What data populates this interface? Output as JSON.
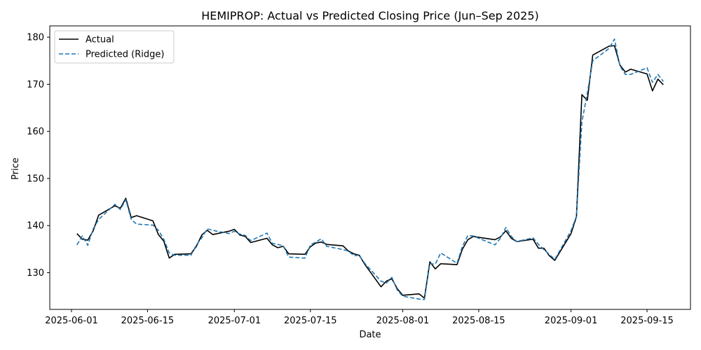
{
  "chart_data": {
    "type": "line",
    "title": "HEMIPROP: Actual vs Predicted Closing Price (Jun–Sep 2025)",
    "xlabel": "Date",
    "ylabel": "Price",
    "x_tick_labels": [
      "2025-06-01",
      "2025-06-15",
      "2025-07-01",
      "2025-07-15",
      "2025-08-01",
      "2025-08-15",
      "2025-09-01",
      "2025-09-15"
    ],
    "y_ticks": [
      130,
      140,
      150,
      160,
      170,
      180
    ],
    "ylim": [
      122.2,
      182.4
    ],
    "xlim": [
      "2025-05-28",
      "2025-09-23"
    ],
    "legend_position": "upper-left",
    "grid": false,
    "series": [
      {
        "name": "Actual",
        "color": "#000000",
        "style": "solid",
        "points": [
          [
            "2025-06-02",
            138.3
          ],
          [
            "2025-06-03",
            137.1
          ],
          [
            "2025-06-04",
            136.9
          ],
          [
            "2025-06-05",
            138.9
          ],
          [
            "2025-06-06",
            142.2
          ],
          [
            "2025-06-09",
            144.2
          ],
          [
            "2025-06-10",
            143.7
          ],
          [
            "2025-06-11",
            145.8
          ],
          [
            "2025-06-12",
            141.7
          ],
          [
            "2025-06-13",
            142.1
          ],
          [
            "2025-06-16",
            141.0
          ],
          [
            "2025-06-17",
            138.1
          ],
          [
            "2025-06-18",
            136.7
          ],
          [
            "2025-06-19",
            133.1
          ],
          [
            "2025-06-20",
            133.9
          ],
          [
            "2025-06-23",
            134.0
          ],
          [
            "2025-06-24",
            135.6
          ],
          [
            "2025-06-25",
            138.0
          ],
          [
            "2025-06-26",
            139.0
          ],
          [
            "2025-06-27",
            138.1
          ],
          [
            "2025-06-30",
            138.8
          ],
          [
            "2025-07-01",
            139.2
          ],
          [
            "2025-07-02",
            138.0
          ],
          [
            "2025-07-03",
            137.7
          ],
          [
            "2025-07-04",
            136.4
          ],
          [
            "2025-07-07",
            137.3
          ],
          [
            "2025-07-08",
            135.9
          ],
          [
            "2025-07-09",
            135.3
          ],
          [
            "2025-07-10",
            135.6
          ],
          [
            "2025-07-11",
            134.0
          ],
          [
            "2025-07-14",
            133.9
          ],
          [
            "2025-07-15",
            135.5
          ],
          [
            "2025-07-16",
            136.3
          ],
          [
            "2025-07-17",
            136.5
          ],
          [
            "2025-07-18",
            136.0
          ],
          [
            "2025-07-21",
            135.7
          ],
          [
            "2025-07-22",
            134.6
          ],
          [
            "2025-07-23",
            134.0
          ],
          [
            "2025-07-24",
            133.7
          ],
          [
            "2025-07-25",
            131.8
          ],
          [
            "2025-07-28",
            127.0
          ],
          [
            "2025-07-29",
            128.2
          ],
          [
            "2025-07-30",
            128.7
          ],
          [
            "2025-07-31",
            126.6
          ],
          [
            "2025-08-01",
            125.2
          ],
          [
            "2025-08-04",
            125.5
          ],
          [
            "2025-08-05",
            124.6
          ],
          [
            "2025-08-06",
            132.3
          ],
          [
            "2025-08-07",
            130.8
          ],
          [
            "2025-08-08",
            131.9
          ],
          [
            "2025-08-11",
            131.7
          ],
          [
            "2025-08-12",
            135.0
          ],
          [
            "2025-08-13",
            137.0
          ],
          [
            "2025-08-14",
            137.7
          ],
          [
            "2025-08-15",
            137.5
          ],
          [
            "2025-08-18",
            137.0
          ],
          [
            "2025-08-19",
            137.6
          ],
          [
            "2025-08-20",
            138.9
          ],
          [
            "2025-08-21",
            137.3
          ],
          [
            "2025-08-22",
            136.6
          ],
          [
            "2025-08-25",
            137.1
          ],
          [
            "2025-08-26",
            135.2
          ],
          [
            "2025-08-27",
            135.2
          ],
          [
            "2025-08-28",
            133.6
          ],
          [
            "2025-08-29",
            132.6
          ],
          [
            "2025-09-01",
            138.3
          ],
          [
            "2025-09-02",
            141.9
          ],
          [
            "2025-09-03",
            167.8
          ],
          [
            "2025-09-04",
            166.6
          ],
          [
            "2025-09-05",
            176.2
          ],
          [
            "2025-09-08",
            178.1
          ],
          [
            "2025-09-09",
            178.2
          ],
          [
            "2025-09-10",
            174.1
          ],
          [
            "2025-09-11",
            172.6
          ],
          [
            "2025-09-12",
            173.2
          ],
          [
            "2025-09-15",
            172.2
          ],
          [
            "2025-09-16",
            168.6
          ],
          [
            "2025-09-17",
            171.1
          ],
          [
            "2025-09-18",
            169.9
          ]
        ]
      },
      {
        "name": "Predicted (Ridge)",
        "color": "#1f77b4",
        "style": "dashed",
        "points": [
          [
            "2025-06-02",
            135.9
          ],
          [
            "2025-06-03",
            137.8
          ],
          [
            "2025-06-04",
            135.8
          ],
          [
            "2025-06-05",
            139.3
          ],
          [
            "2025-06-06",
            141.3
          ],
          [
            "2025-06-09",
            144.5
          ],
          [
            "2025-06-10",
            143.4
          ],
          [
            "2025-06-11",
            145.5
          ],
          [
            "2025-06-12",
            141.3
          ],
          [
            "2025-06-13",
            140.3
          ],
          [
            "2025-06-16",
            140.1
          ],
          [
            "2025-06-17",
            139.0
          ],
          [
            "2025-06-18",
            137.1
          ],
          [
            "2025-06-19",
            134.2
          ],
          [
            "2025-06-20",
            133.7
          ],
          [
            "2025-06-23",
            133.7
          ],
          [
            "2025-06-24",
            135.9
          ],
          [
            "2025-06-25",
            137.4
          ],
          [
            "2025-06-26",
            139.3
          ],
          [
            "2025-06-27",
            139.0
          ],
          [
            "2025-06-30",
            138.3
          ],
          [
            "2025-07-01",
            138.8
          ],
          [
            "2025-07-02",
            138.2
          ],
          [
            "2025-07-03",
            137.9
          ],
          [
            "2025-07-04",
            136.8
          ],
          [
            "2025-07-07",
            138.4
          ],
          [
            "2025-07-08",
            136.2
          ],
          [
            "2025-07-09",
            136.0
          ],
          [
            "2025-07-10",
            135.7
          ],
          [
            "2025-07-11",
            133.3
          ],
          [
            "2025-07-14",
            133.1
          ],
          [
            "2025-07-15",
            135.9
          ],
          [
            "2025-07-16",
            136.5
          ],
          [
            "2025-07-17",
            137.2
          ],
          [
            "2025-07-18",
            135.6
          ],
          [
            "2025-07-21",
            134.9
          ],
          [
            "2025-07-22",
            134.6
          ],
          [
            "2025-07-23",
            133.6
          ],
          [
            "2025-07-24",
            133.7
          ],
          [
            "2025-07-25",
            132.0
          ],
          [
            "2025-07-28",
            128.2
          ],
          [
            "2025-07-29",
            127.8
          ],
          [
            "2025-07-30",
            129.0
          ],
          [
            "2025-07-31",
            126.3
          ],
          [
            "2025-08-01",
            125.0
          ],
          [
            "2025-08-04",
            124.4
          ],
          [
            "2025-08-05",
            124.3
          ],
          [
            "2025-08-06",
            131.9
          ],
          [
            "2025-08-07",
            131.8
          ],
          [
            "2025-08-08",
            134.2
          ],
          [
            "2025-08-11",
            132.0
          ],
          [
            "2025-08-12",
            135.6
          ],
          [
            "2025-08-13",
            137.9
          ],
          [
            "2025-08-14",
            137.8
          ],
          [
            "2025-08-15",
            137.3
          ],
          [
            "2025-08-18",
            135.9
          ],
          [
            "2025-08-19",
            137.3
          ],
          [
            "2025-08-20",
            139.6
          ],
          [
            "2025-08-21",
            137.7
          ],
          [
            "2025-08-22",
            136.6
          ],
          [
            "2025-08-25",
            137.4
          ],
          [
            "2025-08-26",
            136.0
          ],
          [
            "2025-08-27",
            134.9
          ],
          [
            "2025-08-28",
            133.9
          ],
          [
            "2025-08-29",
            132.8
          ],
          [
            "2025-09-01",
            138.9
          ],
          [
            "2025-09-02",
            142.0
          ],
          [
            "2025-09-03",
            162.0
          ],
          [
            "2025-09-04",
            168.1
          ],
          [
            "2025-09-05",
            175.0
          ],
          [
            "2025-09-08",
            177.6
          ],
          [
            "2025-09-09",
            179.6
          ],
          [
            "2025-09-10",
            173.9
          ],
          [
            "2025-09-11",
            172.1
          ],
          [
            "2025-09-12",
            172.1
          ],
          [
            "2025-09-15",
            173.5
          ],
          [
            "2025-09-16",
            170.4
          ],
          [
            "2025-09-17",
            172.1
          ],
          [
            "2025-09-18",
            170.6
          ]
        ]
      }
    ]
  }
}
